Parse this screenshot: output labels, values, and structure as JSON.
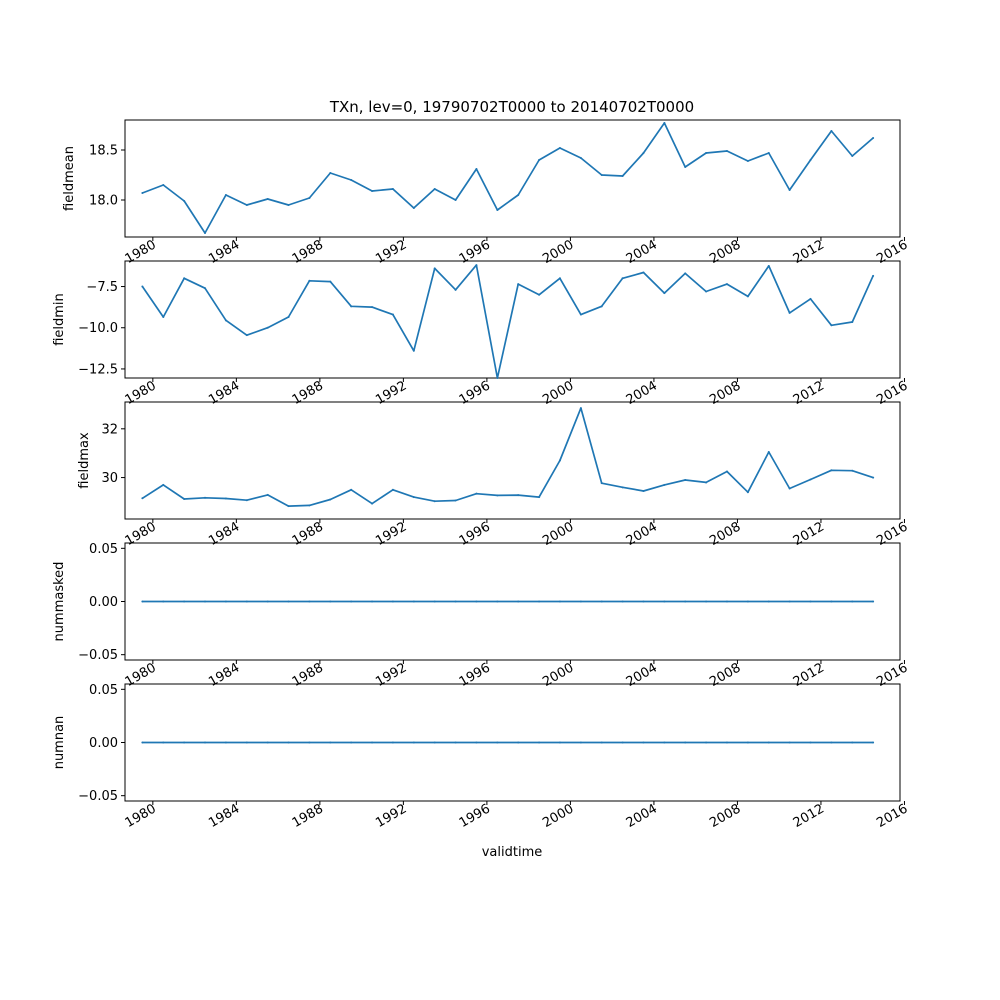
{
  "chart_data": {
    "type": "line",
    "title": "TXn, lev=0, 19790702T0000 to 20140702T0000",
    "xlabel": "validtime",
    "x_years": [
      1979,
      1980,
      1981,
      1982,
      1983,
      1984,
      1985,
      1986,
      1987,
      1988,
      1989,
      1990,
      1991,
      1992,
      1993,
      1994,
      1995,
      1996,
      1997,
      1998,
      1999,
      2000,
      2001,
      2002,
      2003,
      2004,
      2005,
      2006,
      2007,
      2008,
      2009,
      2010,
      2011,
      2012,
      2013,
      2014
    ],
    "x_tick_labels": [
      "1980",
      "1984",
      "1988",
      "1992",
      "1996",
      "2000",
      "2004",
      "2008",
      "2012",
      "2016"
    ],
    "xlim": [
      "1978-09-01",
      "2015-10-15"
    ],
    "panels": [
      {
        "ylabel": "fieldmean",
        "ylim": [
          17.63,
          18.8
        ],
        "yticks": [
          18.0,
          18.5
        ],
        "ytick_labels": [
          "18.0",
          "18.5"
        ],
        "values": [
          18.07,
          18.15,
          17.99,
          17.67,
          18.05,
          17.95,
          18.01,
          17.95,
          18.02,
          18.27,
          18.2,
          18.09,
          18.11,
          17.92,
          18.11,
          18.0,
          18.31,
          17.9,
          18.05,
          18.4,
          18.52,
          18.42,
          18.25,
          18.24,
          18.47,
          18.77,
          18.33,
          18.47,
          18.49,
          18.39,
          18.47,
          18.1,
          18.4,
          18.69,
          18.44,
          18.62
        ]
      },
      {
        "ylabel": "fieldmin",
        "ylim": [
          -13.05,
          -5.95
        ],
        "yticks": [
          -12.5,
          -10.0,
          -7.5
        ],
        "ytick_labels": [
          "−12.5",
          "−10.0",
          "−7.5"
        ],
        "values": [
          -7.5,
          -9.35,
          -7.0,
          -7.6,
          -9.55,
          -10.45,
          -10.0,
          -9.35,
          -7.15,
          -7.2,
          -8.7,
          -8.75,
          -9.2,
          -11.4,
          -6.4,
          -7.7,
          -6.2,
          -13.05,
          -7.35,
          -8.0,
          -7.0,
          -9.2,
          -8.7,
          -7.0,
          -6.65,
          -7.9,
          -6.7,
          -7.8,
          -7.35,
          -8.1,
          -6.25,
          -9.1,
          -8.25,
          -9.85,
          -9.65,
          -6.85
        ]
      },
      {
        "ylabel": "fieldmax",
        "ylim": [
          28.3,
          33.1
        ],
        "yticks": [
          30,
          32
        ],
        "ytick_labels": [
          "30",
          "32"
        ],
        "values": [
          29.15,
          29.7,
          29.12,
          29.17,
          29.14,
          29.07,
          29.29,
          28.83,
          28.86,
          29.1,
          29.5,
          28.93,
          29.5,
          29.2,
          29.03,
          29.06,
          29.34,
          29.27,
          29.28,
          29.2,
          30.7,
          32.85,
          29.77,
          29.6,
          29.45,
          29.7,
          29.9,
          29.8,
          30.25,
          29.4,
          31.05,
          29.55,
          29.92,
          30.3,
          30.28,
          30.0
        ]
      },
      {
        "ylabel": "nummasked",
        "ylim": [
          -0.055,
          0.055
        ],
        "yticks": [
          -0.05,
          0.0,
          0.05
        ],
        "ytick_labels": [
          "−0.05",
          "0.00",
          "0.05"
        ],
        "values": [
          0,
          0,
          0,
          0,
          0,
          0,
          0,
          0,
          0,
          0,
          0,
          0,
          0,
          0,
          0,
          0,
          0,
          0,
          0,
          0,
          0,
          0,
          0,
          0,
          0,
          0,
          0,
          0,
          0,
          0,
          0,
          0,
          0,
          0,
          0,
          0
        ]
      },
      {
        "ylabel": "numnan",
        "ylim": [
          -0.055,
          0.055
        ],
        "yticks": [
          -0.05,
          0.0,
          0.05
        ],
        "ytick_labels": [
          "−0.05",
          "0.00",
          "0.05"
        ],
        "values": [
          0,
          0,
          0,
          0,
          0,
          0,
          0,
          0,
          0,
          0,
          0,
          0,
          0,
          0,
          0,
          0,
          0,
          0,
          0,
          0,
          0,
          0,
          0,
          0,
          0,
          0,
          0,
          0,
          0,
          0,
          0,
          0,
          0,
          0,
          0,
          0
        ]
      }
    ],
    "line_color": "#1f77b4",
    "grid": false
  }
}
